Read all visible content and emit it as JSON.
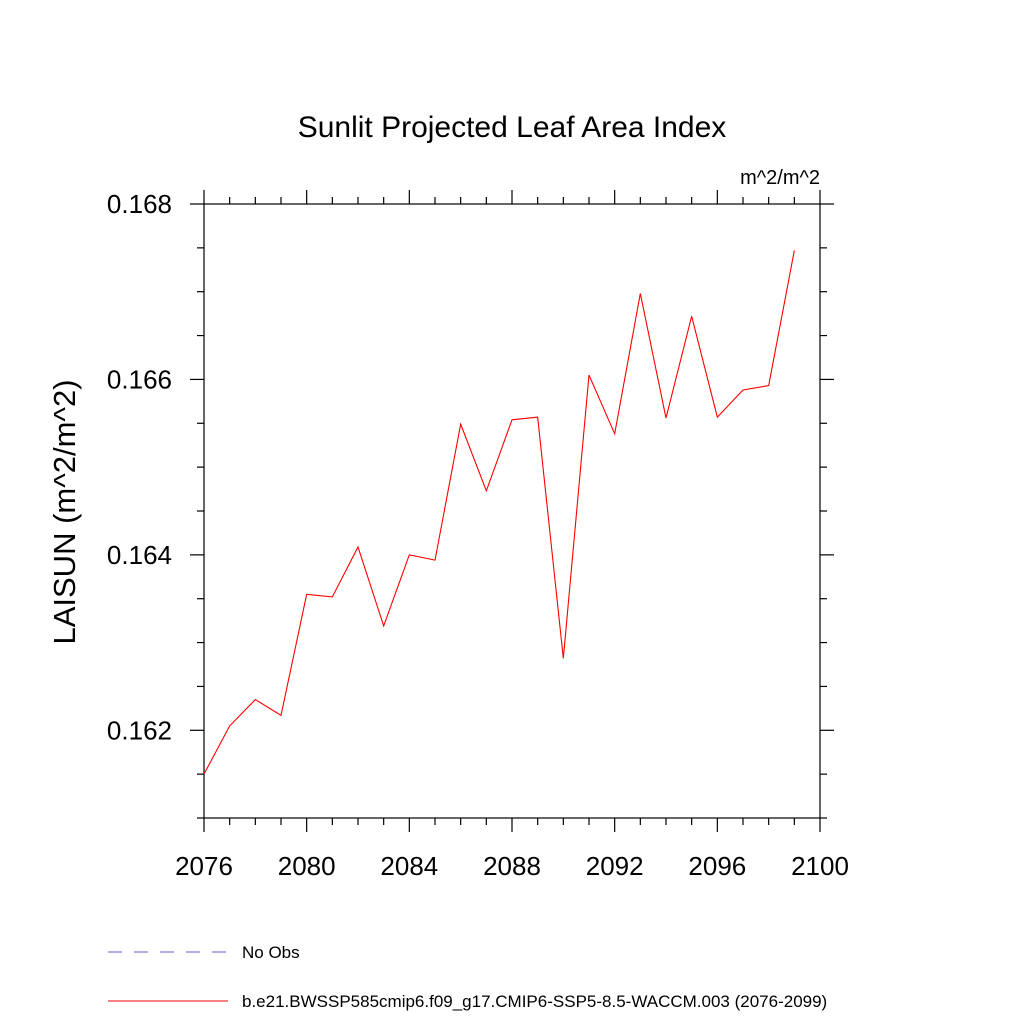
{
  "colors": {
    "series": "#ff0000",
    "no_obs": "#6a5acd",
    "axis": "#000000",
    "background": "#ffffff"
  },
  "chart_data": {
    "type": "line",
    "title": "Sunlit Projected Leaf Area Index",
    "units": "m^2/m^2",
    "xlabel": "",
    "ylabel": "LAISUN  (m^2/m^2)",
    "xlim": [
      2076,
      2100
    ],
    "ylim": [
      0.161,
      0.168
    ],
    "x_ticks": [
      2076,
      2080,
      2084,
      2088,
      2092,
      2096,
      2100
    ],
    "x_tick_labels": [
      "2076",
      "2080",
      "2084",
      "2088",
      "2092",
      "2096",
      "2100"
    ],
    "y_ticks": [
      0.162,
      0.164,
      0.166,
      0.168
    ],
    "y_tick_labels": [
      "0.162",
      "0.164",
      "0.166",
      "0.168"
    ],
    "grid": false,
    "legend_position": "bottom",
    "series": [
      {
        "name": "b.e21.BWSSP585cmip6.f09_g17.CMIP6-SSP5-8.5-WACCM.003 (2076-2099)",
        "x": [
          2076,
          2077,
          2078,
          2079,
          2080,
          2081,
          2082,
          2083,
          2084,
          2085,
          2086,
          2087,
          2088,
          2089,
          2090,
          2091,
          2092,
          2093,
          2094,
          2095,
          2096,
          2097,
          2098,
          2099
        ],
        "y": [
          0.1615,
          0.16205,
          0.16235,
          0.16217,
          0.16355,
          0.16352,
          0.16409,
          0.16319,
          0.164,
          0.16394,
          0.16549,
          0.16473,
          0.16554,
          0.16557,
          0.16282,
          0.16605,
          0.16538,
          0.16698,
          0.16556,
          0.16672,
          0.16557,
          0.16588,
          0.16593,
          0.16747
        ]
      }
    ],
    "legend": [
      {
        "label": "No Obs",
        "style": "dashed"
      },
      {
        "label": "b.e21.BWSSP585cmip6.f09_g17.CMIP6-SSP5-8.5-WACCM.003 (2076-2099)",
        "style": "solid"
      }
    ]
  }
}
